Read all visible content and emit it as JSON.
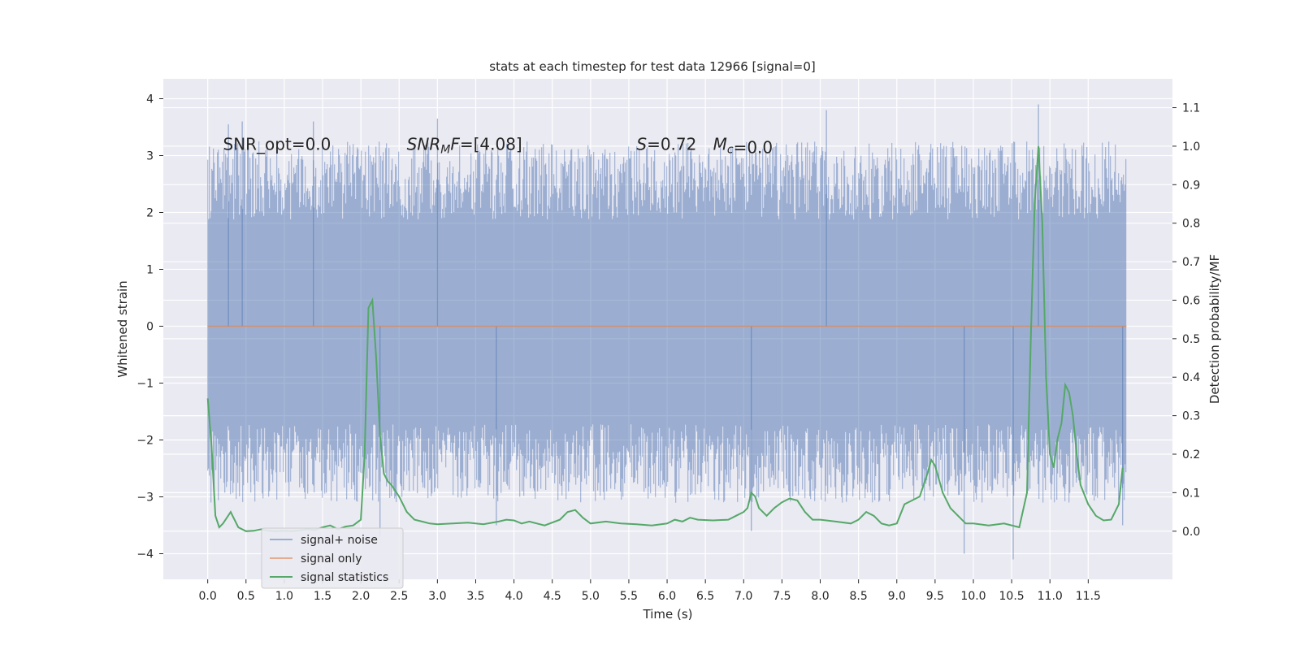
{
  "chart_data": {
    "type": "line",
    "title": "stats at each timestep for test data 12966 [signal=0]",
    "xlabel": "Time (s)",
    "ylabel": "Whitened strain",
    "y2label": "Detection probability/MF",
    "xlim": [
      -0.58,
      12.6
    ],
    "ylim": [
      -4.45,
      4.35
    ],
    "y2lim": [
      -0.125,
      1.175
    ],
    "x_ticks": [
      0.0,
      0.5,
      1.0,
      1.5,
      2.0,
      2.5,
      3.0,
      3.5,
      4.0,
      4.5,
      5.0,
      5.5,
      6.0,
      6.5,
      7.0,
      7.5,
      8.0,
      8.5,
      9.0,
      9.5,
      10.0,
      10.5,
      11.0,
      11.5
    ],
    "x_tick_labels": [
      "0.0",
      "0.5",
      "1.0",
      "1.5",
      "2.0",
      "2.5",
      "3.0",
      "3.5",
      "4.0",
      "4.5",
      "5.0",
      "5.5",
      "6.0",
      "6.5",
      "7.0",
      "7.5",
      "8.0",
      "8.5",
      "9.0",
      "9.5",
      "10.0",
      "10.5",
      "11.0",
      "11.5"
    ],
    "y_ticks": [
      -4,
      -3,
      -2,
      -1,
      0,
      1,
      2,
      3,
      4
    ],
    "y_tick_labels": [
      "−4",
      "−3",
      "−2",
      "−1",
      "0",
      "1",
      "2",
      "3",
      "4"
    ],
    "y2_ticks": [
      0.0,
      0.1,
      0.2,
      0.3,
      0.4,
      0.5,
      0.6,
      0.7,
      0.8,
      0.9,
      1.0,
      1.1
    ],
    "y2_tick_labels": [
      "0.0",
      "0.1",
      "0.2",
      "0.3",
      "0.4",
      "0.5",
      "0.6",
      "0.7",
      "0.8",
      "0.9",
      "1.0",
      "1.1"
    ],
    "grid": true,
    "legend_position": "lower-left",
    "annotations": [
      {
        "text": "SNR_opt=0.0",
        "x": 0.2,
        "y": 3.1
      },
      {
        "text": "SNR_MF=[4.08]",
        "x": 2.6,
        "y": 3.1
      },
      {
        "text": "S=0.72",
        "x": 5.6,
        "y": 3.1
      },
      {
        "text": "M_c=0.0",
        "x": 6.6,
        "y": 3.1
      }
    ],
    "series": [
      {
        "name": "signal+ noise",
        "color": "#4c72b0",
        "opacity": 0.5,
        "axis": "left",
        "x_range": [
          0.0,
          12.0
        ],
        "envelope_upper_typical": 2.5,
        "envelope_lower_typical": -2.3,
        "extremes": [
          {
            "x": 0.27,
            "y": 3.55
          },
          {
            "x": 0.45,
            "y": 3.6
          },
          {
            "x": 1.38,
            "y": 3.6
          },
          {
            "x": 2.25,
            "y": -3.7
          },
          {
            "x": 3.0,
            "y": 3.65
          },
          {
            "x": 3.77,
            "y": -3.5
          },
          {
            "x": 7.1,
            "y": -3.6
          },
          {
            "x": 8.08,
            "y": 3.8
          },
          {
            "x": 9.88,
            "y": -4.0
          },
          {
            "x": 10.52,
            "y": -4.1
          },
          {
            "x": 10.85,
            "y": 3.9
          },
          {
            "x": 11.95,
            "y": -3.5
          }
        ]
      },
      {
        "name": "signal only",
        "color": "#dd8452",
        "axis": "left",
        "x": [
          0.0,
          12.0
        ],
        "y": [
          0.0,
          0.0
        ]
      },
      {
        "name": "signal statistics",
        "color": "#55a868",
        "axis": "right",
        "x": [
          0.0,
          0.05,
          0.1,
          0.15,
          0.2,
          0.3,
          0.4,
          0.5,
          0.6,
          0.7,
          0.8,
          0.9,
          1.0,
          1.1,
          1.2,
          1.3,
          1.4,
          1.5,
          1.6,
          1.7,
          1.8,
          1.9,
          2.0,
          2.05,
          2.1,
          2.15,
          2.2,
          2.25,
          2.3,
          2.35,
          2.4,
          2.5,
          2.6,
          2.7,
          2.8,
          2.9,
          3.0,
          3.2,
          3.4,
          3.6,
          3.8,
          3.9,
          4.0,
          4.1,
          4.2,
          4.4,
          4.6,
          4.7,
          4.8,
          4.9,
          5.0,
          5.2,
          5.4,
          5.6,
          5.8,
          6.0,
          6.1,
          6.2,
          6.3,
          6.4,
          6.6,
          6.8,
          6.9,
          7.0,
          7.05,
          7.1,
          7.15,
          7.2,
          7.3,
          7.4,
          7.5,
          7.6,
          7.7,
          7.8,
          7.9,
          8.0,
          8.2,
          8.4,
          8.5,
          8.6,
          8.7,
          8.8,
          8.9,
          9.0,
          9.1,
          9.2,
          9.3,
          9.4,
          9.45,
          9.5,
          9.6,
          9.7,
          9.8,
          9.9,
          10.0,
          10.2,
          10.4,
          10.6,
          10.7,
          10.75,
          10.8,
          10.85,
          10.9,
          10.95,
          11.0,
          11.05,
          11.1,
          11.15,
          11.2,
          11.25,
          11.3,
          11.35,
          11.4,
          11.5,
          11.6,
          11.7,
          11.8,
          11.9,
          11.95
        ],
        "y": [
          0.345,
          0.22,
          0.04,
          0.01,
          0.02,
          0.05,
          0.01,
          0.0,
          0.001,
          0.005,
          0.001,
          0.0,
          0.001,
          0.0,
          0.002,
          0.005,
          0.003,
          0.01,
          0.015,
          0.005,
          0.012,
          0.015,
          0.03,
          0.2,
          0.58,
          0.6,
          0.45,
          0.25,
          0.15,
          0.13,
          0.12,
          0.09,
          0.05,
          0.03,
          0.025,
          0.02,
          0.018,
          0.02,
          0.022,
          0.018,
          0.025,
          0.03,
          0.028,
          0.02,
          0.025,
          0.015,
          0.03,
          0.05,
          0.055,
          0.035,
          0.02,
          0.025,
          0.02,
          0.018,
          0.015,
          0.02,
          0.03,
          0.025,
          0.035,
          0.03,
          0.028,
          0.03,
          0.04,
          0.05,
          0.06,
          0.1,
          0.09,
          0.06,
          0.04,
          0.06,
          0.075,
          0.085,
          0.08,
          0.05,
          0.03,
          0.03,
          0.025,
          0.02,
          0.03,
          0.05,
          0.04,
          0.02,
          0.015,
          0.02,
          0.07,
          0.08,
          0.09,
          0.15,
          0.185,
          0.17,
          0.1,
          0.06,
          0.04,
          0.02,
          0.02,
          0.015,
          0.02,
          0.01,
          0.1,
          0.5,
          0.85,
          1.0,
          0.8,
          0.4,
          0.2,
          0.165,
          0.24,
          0.28,
          0.38,
          0.36,
          0.3,
          0.2,
          0.12,
          0.07,
          0.04,
          0.028,
          0.03,
          0.07,
          0.165
        ]
      }
    ]
  }
}
